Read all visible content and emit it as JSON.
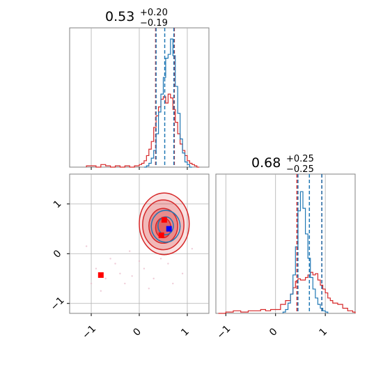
{
  "chart_data": {
    "type": "corner",
    "colors": {
      "red": "#d62728",
      "blue": "#1f77b4",
      "marker_red": "#ff0000",
      "marker_blue": "#0000ff",
      "grid": "#b0b0b0"
    },
    "panels": [
      {
        "id": "param1-hist",
        "type": "histogram",
        "title": {
          "median": "0.53",
          "upper": "+0.20",
          "lower": "−0.19"
        },
        "xlim": [
          -1.45,
          1.45
        ],
        "xgrid": [
          -1,
          0,
          1
        ],
        "red_quantiles": [
          0.34,
          0.73
        ],
        "blue_quantiles": [
          0.35,
          0.53,
          0.72
        ],
        "series": [
          {
            "name": "",
            "color": "#d62728",
            "bins": [
              [
                -1.1,
                0.01
              ],
              [
                -1.0,
                0.01
              ],
              [
                -0.9,
                0.0
              ],
              [
                -0.8,
                0.02
              ],
              [
                -0.7,
                0.01
              ],
              [
                -0.6,
                0.0
              ],
              [
                -0.5,
                0.01
              ],
              [
                -0.4,
                0.0
              ],
              [
                -0.3,
                0.01
              ],
              [
                -0.2,
                0.0
              ],
              [
                -0.1,
                0.01
              ],
              [
                0.0,
                0.02
              ],
              [
                0.05,
                0.03
              ],
              [
                0.1,
                0.05
              ],
              [
                0.15,
                0.09
              ],
              [
                0.2,
                0.14
              ],
              [
                0.25,
                0.2
              ],
              [
                0.3,
                0.31
              ],
              [
                0.35,
                0.4
              ],
              [
                0.4,
                0.47
              ],
              [
                0.45,
                0.53
              ],
              [
                0.5,
                0.55
              ],
              [
                0.55,
                0.5
              ],
              [
                0.6,
                0.57
              ],
              [
                0.65,
                0.54
              ],
              [
                0.7,
                0.45
              ],
              [
                0.75,
                0.35
              ],
              [
                0.8,
                0.26
              ],
              [
                0.85,
                0.18
              ],
              [
                0.9,
                0.13
              ],
              [
                0.95,
                0.09
              ],
              [
                1.0,
                0.05
              ],
              [
                1.05,
                0.03
              ],
              [
                1.1,
                0.02
              ],
              [
                1.15,
                0.01
              ],
              [
                1.2,
                0.0
              ]
            ]
          },
          {
            "name": "",
            "color": "#1f77b4",
            "bins": [
              [
                0.1,
                0.0
              ],
              [
                0.15,
                0.01
              ],
              [
                0.2,
                0.03
              ],
              [
                0.25,
                0.07
              ],
              [
                0.3,
                0.13
              ],
              [
                0.35,
                0.26
              ],
              [
                0.4,
                0.43
              ],
              [
                0.45,
                0.57
              ],
              [
                0.5,
                0.7
              ],
              [
                0.55,
                0.85
              ],
              [
                0.6,
                0.88
              ],
              [
                0.65,
                1.0
              ],
              [
                0.7,
                0.87
              ],
              [
                0.75,
                0.63
              ],
              [
                0.8,
                0.42
              ],
              [
                0.85,
                0.22
              ],
              [
                0.9,
                0.11
              ],
              [
                0.95,
                0.04
              ],
              [
                1.0,
                0.02
              ],
              [
                1.05,
                0.0
              ]
            ]
          }
        ]
      },
      {
        "id": "joint",
        "type": "kde-contour",
        "xlim": [
          -1.45,
          1.45
        ],
        "ylim": [
          -1.2,
          1.6
        ],
        "xgrid": [
          -1,
          0,
          1
        ],
        "ygrid": [
          -1,
          0,
          1
        ],
        "red_contours": [
          {
            "cx": 0.52,
            "cy": 0.6,
            "rx": 0.52,
            "ry": 0.62,
            "fill_opacity": 0.25
          },
          {
            "cx": 0.5,
            "cy": 0.58,
            "rx": 0.43,
            "ry": 0.5,
            "fill_opacity": 0.4
          },
          {
            "cx": 0.5,
            "cy": 0.56,
            "rx": 0.3,
            "ry": 0.35,
            "fill_opacity": 0.55
          },
          {
            "cx": 0.5,
            "cy": 0.52,
            "rx": 0.16,
            "ry": 0.2,
            "fill_opacity": 0.7
          }
        ],
        "blue_contours": [
          {
            "cx": 0.55,
            "cy": 0.55,
            "rx": 0.3,
            "ry": 0.32
          },
          {
            "cx": 0.55,
            "cy": 0.56,
            "rx": 0.16,
            "ry": 0.18
          }
        ],
        "scatter": [
          [
            -0.9,
            -0.3
          ],
          [
            -0.7,
            -0.5
          ],
          [
            -1.1,
            0.15
          ],
          [
            -0.5,
            -0.2
          ],
          [
            -0.3,
            -0.6
          ],
          [
            0.1,
            -0.3
          ],
          [
            0.3,
            -0.5
          ],
          [
            -0.2,
            0.05
          ],
          [
            0.6,
            -0.2
          ],
          [
            -0.6,
            -0.1
          ],
          [
            -1.0,
            -0.6
          ],
          [
            0.45,
            -0.1
          ],
          [
            -0.4,
            -0.4
          ],
          [
            0.0,
            -0.15
          ],
          [
            0.9,
            -0.4
          ],
          [
            1.1,
            0.1
          ],
          [
            -0.8,
            -0.75
          ],
          [
            0.2,
            -0.7
          ],
          [
            -0.15,
            -0.45
          ],
          [
            0.7,
            -0.6
          ]
        ],
        "markers": [
          {
            "color": "#ff0000",
            "x": -0.8,
            "y": -0.43
          },
          {
            "color": "#ff0000",
            "x": 0.52,
            "y": 0.68
          },
          {
            "color": "#ff0000",
            "x": 0.46,
            "y": 0.37
          },
          {
            "color": "#0000ff",
            "x": 0.62,
            "y": 0.5
          }
        ]
      },
      {
        "id": "param2-hist",
        "type": "histogram",
        "title": {
          "median": "0.68",
          "upper": "+0.25",
          "lower": "−0.25"
        },
        "xlim": [
          -1.2,
          1.6
        ],
        "xgrid": [
          -1,
          0,
          1
        ],
        "red_quantiles": [
          0.43,
          0.93
        ],
        "blue_quantiles": [
          0.45,
          0.68,
          0.93
        ],
        "series": [
          {
            "name": "",
            "color": "#d62728",
            "bins": [
              [
                -1.15,
                0.0
              ],
              [
                -1.0,
                0.01
              ],
              [
                -0.85,
                0.02
              ],
              [
                -0.7,
                0.01
              ],
              [
                -0.55,
                0.02
              ],
              [
                -0.4,
                0.02
              ],
              [
                -0.3,
                0.03
              ],
              [
                -0.2,
                0.02
              ],
              [
                -0.1,
                0.03
              ],
              [
                0.0,
                0.03
              ],
              [
                0.1,
                0.07
              ],
              [
                0.2,
                0.1
              ],
              [
                0.3,
                0.15
              ],
              [
                0.35,
                0.2
              ],
              [
                0.4,
                0.25
              ],
              [
                0.45,
                0.27
              ],
              [
                0.5,
                0.26
              ],
              [
                0.55,
                0.26
              ],
              [
                0.6,
                0.28
              ],
              [
                0.65,
                0.3
              ],
              [
                0.7,
                0.32
              ],
              [
                0.75,
                0.3
              ],
              [
                0.8,
                0.31
              ],
              [
                0.85,
                0.26
              ],
              [
                0.9,
                0.22
              ],
              [
                0.95,
                0.19
              ],
              [
                1.0,
                0.16
              ],
              [
                1.05,
                0.12
              ],
              [
                1.1,
                0.1
              ],
              [
                1.15,
                0.08
              ],
              [
                1.25,
                0.07
              ],
              [
                1.35,
                0.04
              ],
              [
                1.45,
                0.02
              ],
              [
                1.55,
                0.01
              ]
            ]
          },
          {
            "name": "",
            "color": "#1f77b4",
            "bins": [
              [
                0.15,
                0.01
              ],
              [
                0.2,
                0.03
              ],
              [
                0.25,
                0.08
              ],
              [
                0.3,
                0.15
              ],
              [
                0.35,
                0.3
              ],
              [
                0.4,
                0.52
              ],
              [
                0.45,
                0.8
              ],
              [
                0.5,
                0.95
              ],
              [
                0.55,
                0.82
              ],
              [
                0.6,
                0.62
              ],
              [
                0.65,
                0.43
              ],
              [
                0.7,
                0.28
              ],
              [
                0.75,
                0.19
              ],
              [
                0.8,
                0.12
              ],
              [
                0.85,
                0.07
              ],
              [
                0.9,
                0.04
              ],
              [
                0.95,
                0.02
              ],
              [
                1.0,
                0.01
              ]
            ]
          }
        ]
      }
    ],
    "xticklabels": [
      "−1",
      "0",
      "1"
    ],
    "yticklabels": [
      "−1",
      "0",
      "1"
    ]
  }
}
